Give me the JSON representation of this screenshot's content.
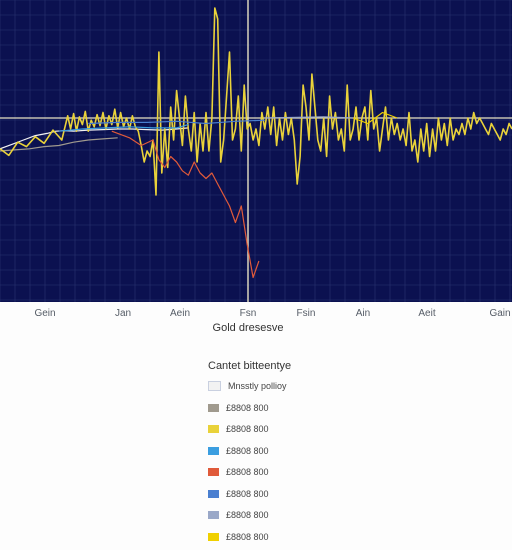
{
  "chart_data": {
    "type": "line",
    "title": "Gold dresesve",
    "background": "#0b1150",
    "grid": true,
    "grid_color": "#2a3470",
    "reference_line_color": "#e8e3c4",
    "x_tick_labels": [
      "Gein",
      "Jan",
      "Aein",
      "Fsn",
      "Fsin",
      "Ain",
      "Aeit",
      "Gain"
    ],
    "series": [
      {
        "name": "Mnsstly pollioy",
        "color": "#f2f2f2",
        "values": [
          [
            0,
            0.28
          ],
          [
            4,
            0.24
          ],
          [
            8,
            0.2
          ],
          [
            12,
            0.16
          ],
          [
            16,
            0.14
          ],
          [
            19,
            0.12
          ],
          [
            22,
            0.115
          ],
          [
            25,
            0.12
          ],
          [
            30,
            0.11
          ],
          [
            35,
            0.105
          ],
          [
            40,
            0.1
          ],
          [
            45,
            0.1
          ],
          [
            50,
            0.105
          ],
          [
            55,
            0.11
          ],
          [
            60,
            0.1
          ],
          [
            64,
            0.09
          ]
        ]
      },
      {
        "name": "£8808 800",
        "color": "#a09a8e",
        "values": [
          [
            0,
            0.3
          ],
          [
            5,
            0.29
          ],
          [
            10,
            0.28
          ],
          [
            15,
            0.26
          ],
          [
            20,
            0.25
          ],
          [
            25,
            0.22
          ],
          [
            30,
            0.2
          ],
          [
            35,
            0.19
          ],
          [
            40,
            0.18
          ]
        ]
      },
      {
        "name": "£8808 800",
        "color": "#e9d23a",
        "values": [
          [
            0,
            0.28
          ],
          [
            3,
            0.34
          ],
          [
            6,
            0.22
          ],
          [
            9,
            0.26
          ],
          [
            12,
            0.17
          ],
          [
            15,
            0.23
          ],
          [
            18,
            0.11
          ],
          [
            21,
            0.2
          ],
          [
            23,
            -0.02
          ],
          [
            24,
            0.1
          ],
          [
            25,
            -0.04
          ],
          [
            26,
            0.12
          ],
          [
            27,
            -0.01
          ],
          [
            28,
            0.06
          ],
          [
            29,
            -0.06
          ],
          [
            30,
            0.12
          ],
          [
            31,
            0.02
          ],
          [
            32,
            0.08
          ],
          [
            33,
            -0.03
          ],
          [
            34,
            0.07
          ],
          [
            35,
            -0.05
          ],
          [
            36,
            0.1
          ],
          [
            37,
            -0.02
          ],
          [
            38,
            0.06
          ],
          [
            39,
            -0.08
          ],
          [
            40,
            0.09
          ],
          [
            41,
            -0.05
          ],
          [
            42,
            0.08
          ],
          [
            43,
            0.0
          ],
          [
            44,
            0.1
          ],
          [
            45,
            -0.02
          ],
          [
            46,
            0.08
          ],
          [
            47,
            0.12
          ],
          [
            48,
            0.25
          ],
          [
            49,
            0.4
          ],
          [
            50,
            0.3
          ],
          [
            51,
            0.35
          ],
          [
            52,
            0.2
          ],
          [
            53,
            0.7
          ],
          [
            54,
            -0.6
          ],
          [
            55,
            0.5
          ],
          [
            56,
            0.1
          ],
          [
            57,
            0.45
          ],
          [
            58,
            -0.1
          ],
          [
            59,
            0.2
          ],
          [
            60,
            -0.25
          ],
          [
            61,
            0.0
          ],
          [
            62,
            0.25
          ],
          [
            63,
            -0.2
          ],
          [
            64,
            0.1
          ],
          [
            65,
            0.3
          ],
          [
            66,
            -0.05
          ],
          [
            67,
            0.4
          ],
          [
            68,
            0.05
          ],
          [
            69,
            0.3
          ],
          [
            70,
            -0.05
          ],
          [
            71,
            0.3
          ],
          [
            72,
            0.0
          ],
          [
            73,
            -1.0
          ],
          [
            74,
            -0.9
          ],
          [
            75,
            0.4
          ],
          [
            76,
            0.2
          ],
          [
            77,
            -0.2
          ],
          [
            78,
            -0.6
          ],
          [
            79,
            0.2
          ],
          [
            80,
            0.1
          ],
          [
            81,
            -0.2
          ],
          [
            82,
            0.3
          ],
          [
            83,
            -0.3
          ],
          [
            84,
            0.1
          ],
          [
            85,
            0.05
          ],
          [
            86,
            0.2
          ],
          [
            87,
            0.1
          ],
          [
            88,
            0.25
          ],
          [
            89,
            -0.05
          ],
          [
            90,
            0.1
          ],
          [
            91,
            -0.1
          ],
          [
            92,
            0.15
          ],
          [
            93,
            -0.1
          ],
          [
            94,
            0.25
          ],
          [
            95,
            0.0
          ],
          [
            96,
            0.2
          ],
          [
            97,
            -0.05
          ],
          [
            98,
            0.15
          ],
          [
            99,
            0.0
          ],
          [
            100,
            0.2
          ],
          [
            101,
            0.6
          ],
          [
            102,
            0.35
          ],
          [
            103,
            -0.3
          ],
          [
            104,
            -0.1
          ],
          [
            105,
            0.2
          ],
          [
            106,
            -0.4
          ],
          [
            107,
            -0.1
          ],
          [
            108,
            0.2
          ],
          [
            109,
            0.3
          ],
          [
            110,
            0.0
          ],
          [
            111,
            0.35
          ],
          [
            112,
            -0.2
          ],
          [
            113,
            0.1
          ],
          [
            114,
            -0.05
          ],
          [
            115,
            0.2
          ],
          [
            116,
            0.1
          ],
          [
            117,
            0.3
          ],
          [
            118,
            -0.3
          ],
          [
            119,
            0.2
          ],
          [
            120,
            0.1
          ],
          [
            121,
            -0.1
          ],
          [
            122,
            0.2
          ],
          [
            123,
            0.0
          ],
          [
            124,
            -0.1
          ],
          [
            125,
            0.2
          ],
          [
            126,
            -0.25
          ],
          [
            127,
            0.1
          ],
          [
            128,
            0.0
          ],
          [
            129,
            0.3
          ],
          [
            130,
            0.1
          ],
          [
            131,
            -0.1
          ],
          [
            132,
            0.2
          ],
          [
            133,
            0.0
          ],
          [
            134,
            0.15
          ],
          [
            135,
            0.05
          ],
          [
            136,
            0.2
          ],
          [
            137,
            0.1
          ],
          [
            138,
            0.25
          ],
          [
            139,
            -0.05
          ],
          [
            140,
            0.3
          ],
          [
            141,
            0.2
          ],
          [
            142,
            0.4
          ],
          [
            143,
            0.1
          ],
          [
            144,
            0.3
          ],
          [
            145,
            0.05
          ],
          [
            146,
            0.35
          ],
          [
            147,
            0.1
          ],
          [
            148,
            0.3
          ],
          [
            149,
            0.0
          ],
          [
            150,
            0.2
          ],
          [
            151,
            0.05
          ],
          [
            152,
            0.25
          ],
          [
            153,
            0.0
          ],
          [
            154,
            0.2
          ],
          [
            155,
            0.1
          ],
          [
            156,
            0.15
          ],
          [
            157,
            0.05
          ],
          [
            158,
            0.15
          ],
          [
            159,
            0.0
          ],
          [
            160,
            0.1
          ],
          [
            161,
            -0.05
          ],
          [
            162,
            0.05
          ],
          [
            163,
            0.0
          ],
          [
            164,
            0.05
          ],
          [
            165,
            0.1
          ],
          [
            166,
            0.15
          ],
          [
            167,
            0.05
          ],
          [
            168,
            0.1
          ],
          [
            169,
            0.15
          ],
          [
            170,
            0.2
          ],
          [
            171,
            0.1
          ],
          [
            172,
            0.15
          ],
          [
            173,
            0.05
          ],
          [
            174,
            0.1
          ]
        ]
      },
      {
        "name": "£8808 800",
        "color": "#3b9ee0",
        "values": [
          [
            20,
            0.12
          ],
          [
            28,
            0.1
          ],
          [
            36,
            0.09
          ],
          [
            44,
            0.08
          ],
          [
            52,
            0.09
          ],
          [
            60,
            0.09
          ],
          [
            64,
            0.06
          ]
        ]
      },
      {
        "name": "£8808 800",
        "color": "#e05a3a",
        "values": [
          [
            38,
            0.12
          ],
          [
            44,
            0.18
          ],
          [
            48,
            0.25
          ],
          [
            52,
            0.2
          ],
          [
            54,
            0.38
          ],
          [
            56,
            0.45
          ],
          [
            58,
            0.35
          ],
          [
            60,
            0.4
          ],
          [
            62,
            0.48
          ],
          [
            64,
            0.52
          ],
          [
            66,
            0.4
          ],
          [
            68,
            0.5
          ],
          [
            70,
            0.55
          ],
          [
            72,
            0.5
          ],
          [
            74,
            0.6
          ],
          [
            76,
            0.7
          ],
          [
            78,
            0.8
          ],
          [
            80,
            0.95
          ],
          [
            82,
            0.8
          ],
          [
            84,
            1.15
          ],
          [
            86,
            1.45
          ],
          [
            88,
            1.3
          ]
        ]
      },
      {
        "name": "£8808 800",
        "color": "#4a7fd0",
        "values": [
          [
            30,
            0.05
          ],
          [
            40,
            0.04
          ],
          [
            50,
            0.04
          ],
          [
            60,
            0.03
          ],
          [
            70,
            0.05
          ],
          [
            80,
            0.03
          ],
          [
            90,
            0.02
          ]
        ]
      },
      {
        "name": "£8808 800",
        "color": "#9aa8c8",
        "values": [
          [
            90,
            0.0
          ],
          [
            110,
            -0.01
          ],
          [
            120,
            0.0
          ]
        ]
      },
      {
        "name": "£8808 800",
        "color": "#f0d000",
        "values": [
          [
            120,
            0.0
          ],
          [
            125,
            0.05
          ],
          [
            130,
            -0.05
          ],
          [
            135,
            0.0
          ]
        ]
      }
    ],
    "legend": {
      "title": "Cantet bitteentye",
      "position": "bottom-center",
      "entries": [
        {
          "label": "Mnsstly pollioy",
          "color": "#f2f2f2"
        },
        {
          "label": "£8808 800",
          "color": "#a09a8e"
        },
        {
          "label": "£8808 800",
          "color": "#e9d23a"
        },
        {
          "label": "£8808 800",
          "color": "#3b9ee0"
        },
        {
          "label": "£8808 800",
          "color": "#e05a3a"
        },
        {
          "label": "£8808 800",
          "color": "#4a7fd0"
        },
        {
          "label": "£8808 800",
          "color": "#9aa8c8"
        },
        {
          "label": "£8808 800",
          "color": "#f0d000"
        }
      ]
    }
  }
}
